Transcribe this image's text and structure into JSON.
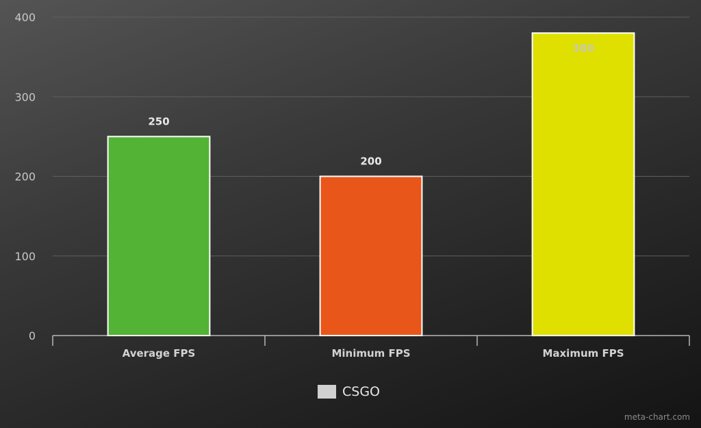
{
  "chart_data": {
    "type": "bar",
    "categories": [
      "Average FPS",
      "Minimum FPS",
      "Maximum FPS"
    ],
    "series": [
      {
        "name": "CSGO",
        "values": [
          250,
          200,
          380
        ]
      }
    ],
    "value_labels": [
      "250",
      "200",
      "380"
    ],
    "bar_colors": [
      "#52b335",
      "#e9561a",
      "#dfe000"
    ],
    "value_label_colors": [
      "#e8e8e8",
      "#e8e8e8",
      "#c8c8b0"
    ],
    "ylim": [
      0,
      400
    ],
    "yticks": [
      0,
      100,
      200,
      300,
      400
    ],
    "grid": true,
    "legend_position": "bottom-center",
    "legend_color": "#d0d0d0"
  },
  "watermark": "meta-chart.com"
}
